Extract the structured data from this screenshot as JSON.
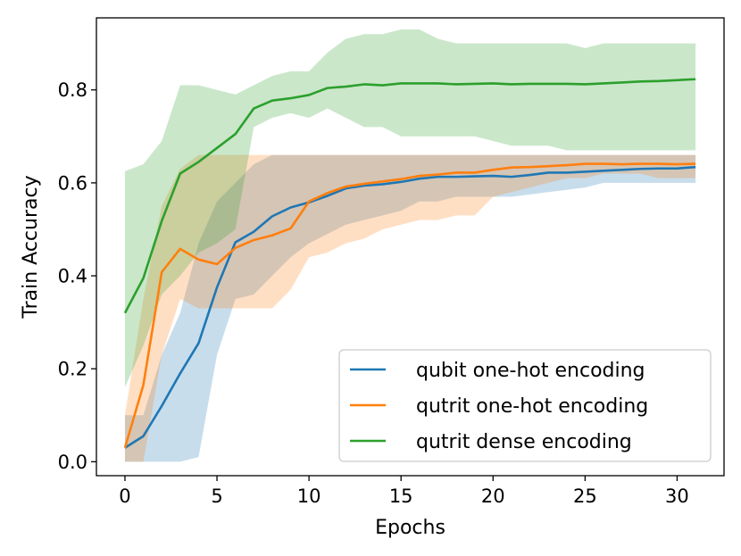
{
  "chart_data": {
    "type": "line",
    "title": "",
    "xlabel": "Epochs",
    "ylabel": "Train Accuracy",
    "xlim": [
      -1.55,
      32.55
    ],
    "ylim": [
      -0.03,
      0.955
    ],
    "xticks": [
      0,
      5,
      10,
      15,
      20,
      25,
      30
    ],
    "yticks": [
      0.0,
      0.2,
      0.4,
      0.6,
      0.8
    ],
    "ytick_labels": [
      "0.0",
      "0.2",
      "0.4",
      "0.6",
      "0.8"
    ],
    "grid": false,
    "legend_position": "lower-right",
    "x": [
      0,
      1,
      2,
      3,
      4,
      5,
      6,
      7,
      8,
      9,
      10,
      11,
      12,
      13,
      14,
      15,
      16,
      17,
      18,
      19,
      20,
      21,
      22,
      23,
      24,
      25,
      26,
      27,
      28,
      29,
      30,
      31
    ],
    "series": [
      {
        "name": "qubit one-hot encoding",
        "color": "#1f77b4",
        "values": [
          0.03,
          0.055,
          0.12,
          0.19,
          0.255,
          0.375,
          0.472,
          0.495,
          0.528,
          0.547,
          0.558,
          0.572,
          0.588,
          0.594,
          0.597,
          0.602,
          0.609,
          0.613,
          0.613,
          0.614,
          0.615,
          0.613,
          0.617,
          0.622,
          0.622,
          0.624,
          0.626,
          0.628,
          0.63,
          0.631,
          0.631,
          0.634
        ],
        "lower": [
          0.0,
          0.0,
          0.0,
          0.0,
          0.01,
          0.23,
          0.35,
          0.36,
          0.4,
          0.44,
          0.47,
          0.49,
          0.51,
          0.52,
          0.53,
          0.54,
          0.56,
          0.56,
          0.57,
          0.57,
          0.57,
          0.57,
          0.575,
          0.58,
          0.585,
          0.59,
          0.6,
          0.6,
          0.6,
          0.6,
          0.6,
          0.6
        ],
        "upper": [
          0.1,
          0.1,
          0.23,
          0.32,
          0.47,
          0.56,
          0.6,
          0.64,
          0.66,
          0.66,
          0.66,
          0.66,
          0.66,
          0.66,
          0.66,
          0.66,
          0.66,
          0.66,
          0.66,
          0.66,
          0.66,
          0.66,
          0.66,
          0.66,
          0.66,
          0.66,
          0.66,
          0.66,
          0.66,
          0.66,
          0.66,
          0.66
        ]
      },
      {
        "name": "qutrit one-hot encoding",
        "color": "#ff7f0e",
        "values": [
          0.03,
          0.165,
          0.408,
          0.458,
          0.435,
          0.425,
          0.46,
          0.477,
          0.487,
          0.502,
          0.56,
          0.578,
          0.592,
          0.598,
          0.603,
          0.608,
          0.615,
          0.618,
          0.622,
          0.622,
          0.628,
          0.633,
          0.634,
          0.636,
          0.638,
          0.641,
          0.641,
          0.64,
          0.641,
          0.641,
          0.64,
          0.641
        ],
        "lower": [
          0.0,
          0.0,
          0.23,
          0.35,
          0.33,
          0.33,
          0.33,
          0.33,
          0.33,
          0.37,
          0.44,
          0.45,
          0.47,
          0.48,
          0.5,
          0.51,
          0.52,
          0.52,
          0.53,
          0.53,
          0.57,
          0.58,
          0.59,
          0.6,
          0.61,
          0.61,
          0.62,
          0.62,
          0.62,
          0.61,
          0.61,
          0.61
        ],
        "upper": [
          0.1,
          0.35,
          0.55,
          0.63,
          0.66,
          0.66,
          0.66,
          0.66,
          0.66,
          0.66,
          0.66,
          0.66,
          0.66,
          0.66,
          0.66,
          0.66,
          0.66,
          0.66,
          0.66,
          0.66,
          0.66,
          0.66,
          0.66,
          0.66,
          0.66,
          0.66,
          0.66,
          0.66,
          0.66,
          0.66,
          0.66,
          0.66
        ]
      },
      {
        "name": "qutrit dense encoding",
        "color": "#2ca02c",
        "values": [
          0.32,
          0.395,
          0.518,
          0.62,
          0.645,
          0.675,
          0.705,
          0.76,
          0.777,
          0.782,
          0.789,
          0.804,
          0.807,
          0.812,
          0.81,
          0.814,
          0.814,
          0.814,
          0.812,
          0.813,
          0.814,
          0.812,
          0.813,
          0.813,
          0.813,
          0.812,
          0.814,
          0.816,
          0.818,
          0.819,
          0.821,
          0.823
        ],
        "lower": [
          0.16,
          0.25,
          0.36,
          0.4,
          0.45,
          0.47,
          0.5,
          0.72,
          0.74,
          0.75,
          0.74,
          0.76,
          0.74,
          0.72,
          0.72,
          0.7,
          0.7,
          0.7,
          0.7,
          0.7,
          0.69,
          0.68,
          0.68,
          0.68,
          0.67,
          0.67,
          0.67,
          0.67,
          0.67,
          0.67,
          0.67,
          0.67
        ],
        "upper": [
          0.625,
          0.64,
          0.69,
          0.81,
          0.81,
          0.8,
          0.79,
          0.81,
          0.83,
          0.84,
          0.84,
          0.88,
          0.91,
          0.92,
          0.92,
          0.93,
          0.93,
          0.91,
          0.9,
          0.9,
          0.9,
          0.9,
          0.9,
          0.9,
          0.9,
          0.89,
          0.9,
          0.9,
          0.9,
          0.9,
          0.9,
          0.9
        ]
      }
    ]
  }
}
